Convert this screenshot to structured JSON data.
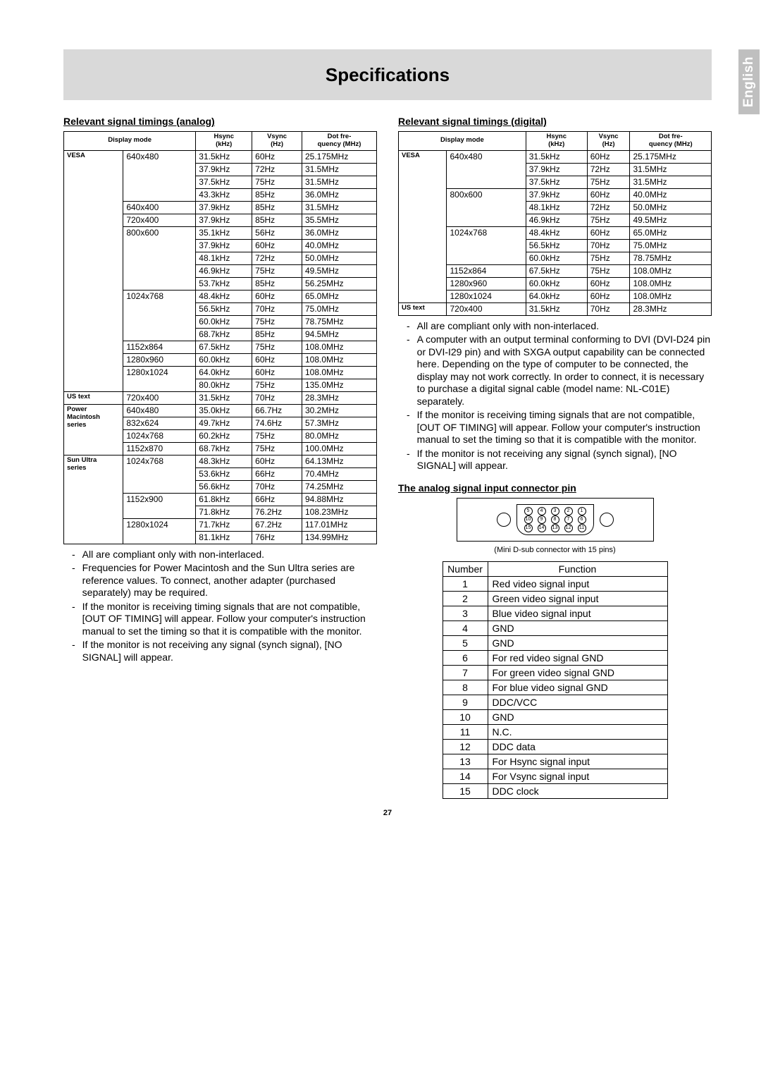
{
  "title": "Specifications",
  "lang_label": "English",
  "page_number": "27",
  "analog": {
    "heading": "Relevant signal timings (analog)",
    "headers": {
      "display_mode": "Display mode",
      "hsync": "Hsync\n(kHz)",
      "vsync": "Vsync\n(Hz)",
      "dotfreq": "Dot fre-\nquency (MHz)"
    },
    "groups": [
      {
        "label": "VESA",
        "modes": [
          {
            "res": "640x480",
            "rows": [
              [
                "31.5kHz",
                "60Hz",
                "25.175MHz"
              ],
              [
                "37.9kHz",
                "72Hz",
                "31.5MHz"
              ],
              [
                "37.5kHz",
                "75Hz",
                "31.5MHz"
              ],
              [
                "43.3kHz",
                "85Hz",
                "36.0MHz"
              ]
            ]
          },
          {
            "res": "640x400",
            "rows": [
              [
                "37.9kHz",
                "85Hz",
                "31.5MHz"
              ]
            ]
          },
          {
            "res": "720x400",
            "rows": [
              [
                "37.9kHz",
                "85Hz",
                "35.5MHz"
              ]
            ]
          },
          {
            "res": "800x600",
            "rows": [
              [
                "35.1kHz",
                "56Hz",
                "36.0MHz"
              ],
              [
                "37.9kHz",
                "60Hz",
                "40.0MHz"
              ],
              [
                "48.1kHz",
                "72Hz",
                "50.0MHz"
              ],
              [
                "46.9kHz",
                "75Hz",
                "49.5MHz"
              ],
              [
                "53.7kHz",
                "85Hz",
                "56.25MHz"
              ]
            ]
          },
          {
            "res": "1024x768",
            "rows": [
              [
                "48.4kHz",
                "60Hz",
                "65.0MHz"
              ],
              [
                "56.5kHz",
                "70Hz",
                "75.0MHz"
              ],
              [
                "60.0kHz",
                "75Hz",
                "78.75MHz"
              ],
              [
                "68.7kHz",
                "85Hz",
                "94.5MHz"
              ]
            ]
          },
          {
            "res": "1152x864",
            "rows": [
              [
                "67.5kHz",
                "75Hz",
                "108.0MHz"
              ]
            ]
          },
          {
            "res": "1280x960",
            "rows": [
              [
                "60.0kHz",
                "60Hz",
                "108.0MHz"
              ]
            ]
          },
          {
            "res": "1280x1024",
            "rows": [
              [
                "64.0kHz",
                "60Hz",
                "108.0MHz"
              ],
              [
                "80.0kHz",
                "75Hz",
                "135.0MHz"
              ]
            ]
          }
        ]
      },
      {
        "label": "US text",
        "modes": [
          {
            "res": "720x400",
            "rows": [
              [
                "31.5kHz",
                "70Hz",
                "28.3MHz"
              ]
            ]
          }
        ]
      },
      {
        "label": "Power\nMacintosh\nseries",
        "modes": [
          {
            "res": "640x480",
            "rows": [
              [
                "35.0kHz",
                "66.7Hz",
                "30.2MHz"
              ]
            ]
          },
          {
            "res": "832x624",
            "rows": [
              [
                "49.7kHz",
                "74.6Hz",
                "57.3MHz"
              ]
            ]
          },
          {
            "res": "1024x768",
            "rows": [
              [
                "60.2kHz",
                "75Hz",
                "80.0MHz"
              ]
            ]
          },
          {
            "res": "1152x870",
            "rows": [
              [
                "68.7kHz",
                "75Hz",
                "100.0MHz"
              ]
            ]
          }
        ]
      },
      {
        "label": "Sun Ultra\nseries",
        "modes": [
          {
            "res": "1024x768",
            "rows": [
              [
                "48.3kHz",
                "60Hz",
                "64.13MHz"
              ],
              [
                "53.6kHz",
                "66Hz",
                "70.4MHz"
              ],
              [
                "56.6kHz",
                "70Hz",
                "74.25MHz"
              ]
            ]
          },
          {
            "res": "1152x900",
            "rows": [
              [
                "61.8kHz",
                "66Hz",
                "94.88MHz"
              ],
              [
                "71.8kHz",
                "76.2Hz",
                "108.23MHz"
              ]
            ]
          },
          {
            "res": "1280x1024",
            "rows": [
              [
                "71.7kHz",
                "67.2Hz",
                "117.01MHz"
              ],
              [
                "81.1kHz",
                "76Hz",
                "134.99MHz"
              ]
            ]
          }
        ]
      }
    ],
    "notes": [
      "All are compliant only with non-interlaced.",
      "Frequencies for Power Macintosh and the Sun Ultra series are reference values. To connect, another adapter (purchased separately) may be required.",
      "If the monitor is receiving timing signals that are not compatible, [OUT OF TIMING] will appear. Follow your computer's instruction manual to set the timing so that it is compatible with the monitor.",
      "If the monitor is not receiving any signal (synch signal), [NO SIGNAL] will appear."
    ]
  },
  "digital": {
    "heading": "Relevant signal timings (digital)",
    "groups": [
      {
        "label": "VESA",
        "modes": [
          {
            "res": "640x480",
            "rows": [
              [
                "31.5kHz",
                "60Hz",
                "25.175MHz"
              ],
              [
                "37.9kHz",
                "72Hz",
                "31.5MHz"
              ],
              [
                "37.5kHz",
                "75Hz",
                "31.5MHz"
              ]
            ]
          },
          {
            "res": "800x600",
            "rows": [
              [
                "37.9kHz",
                "60Hz",
                "40.0MHz"
              ],
              [
                "48.1kHz",
                "72Hz",
                "50.0MHz"
              ],
              [
                "46.9kHz",
                "75Hz",
                "49.5MHz"
              ]
            ]
          },
          {
            "res": "1024x768",
            "rows": [
              [
                "48.4kHz",
                "60Hz",
                "65.0MHz"
              ],
              [
                "56.5kHz",
                "70Hz",
                "75.0MHz"
              ],
              [
                "60.0kHz",
                "75Hz",
                "78.75MHz"
              ]
            ]
          },
          {
            "res": "1152x864",
            "rows": [
              [
                "67.5kHz",
                "75Hz",
                "108.0MHz"
              ]
            ]
          },
          {
            "res": "1280x960",
            "rows": [
              [
                "60.0kHz",
                "60Hz",
                "108.0MHz"
              ]
            ]
          },
          {
            "res": "1280x1024",
            "rows": [
              [
                "64.0kHz",
                "60Hz",
                "108.0MHz"
              ]
            ]
          }
        ]
      },
      {
        "label": "US text",
        "modes": [
          {
            "res": "720x400",
            "rows": [
              [
                "31.5kHz",
                "70Hz",
                "28.3MHz"
              ]
            ]
          }
        ]
      }
    ],
    "notes": [
      "All are compliant only with non-interlaced.",
      "A computer with an output terminal conforming to DVI (DVI-D24 pin or DVI-I29 pin) and with SXGA output capability can be connected here. Depending on the type of computer to be connected, the display may not work correctly. In order to connect, it is necessary to purchase a digital signal cable (model name: NL-C01E) separately.",
      "If the monitor is receiving timing signals that are not compatible, [OUT OF TIMING] will appear. Follow your computer's instruction manual to set the timing so that it is compatible with the monitor.",
      "If the monitor is not receiving any signal (synch signal), [NO SIGNAL] will appear."
    ]
  },
  "connector": {
    "heading": "The analog signal input connector pin",
    "caption": "(Mini D-sub connector with 15 pins)",
    "pin_rows": [
      [
        "5",
        "4",
        "3",
        "2",
        "1"
      ],
      [
        "10",
        "9",
        "8",
        "7",
        "6"
      ],
      [
        "15",
        "14",
        "13",
        "12",
        "11"
      ]
    ],
    "table_headers": {
      "number": "Number",
      "function": "Function"
    },
    "pins": [
      {
        "n": "1",
        "f": "Red video signal input"
      },
      {
        "n": "2",
        "f": "Green video signal input"
      },
      {
        "n": "3",
        "f": "Blue video signal input"
      },
      {
        "n": "4",
        "f": "GND"
      },
      {
        "n": "5",
        "f": "GND"
      },
      {
        "n": "6",
        "f": "For red video signal GND"
      },
      {
        "n": "7",
        "f": "For green video signal GND"
      },
      {
        "n": "8",
        "f": "For blue video signal GND"
      },
      {
        "n": "9",
        "f": "DDC/VCC"
      },
      {
        "n": "10",
        "f": "GND"
      },
      {
        "n": "11",
        "f": "N.C."
      },
      {
        "n": "12",
        "f": "DDC data"
      },
      {
        "n": "13",
        "f": "For Hsync signal input"
      },
      {
        "n": "14",
        "f": "For Vsync signal input"
      },
      {
        "n": "15",
        "f": "DDC clock"
      }
    ]
  }
}
